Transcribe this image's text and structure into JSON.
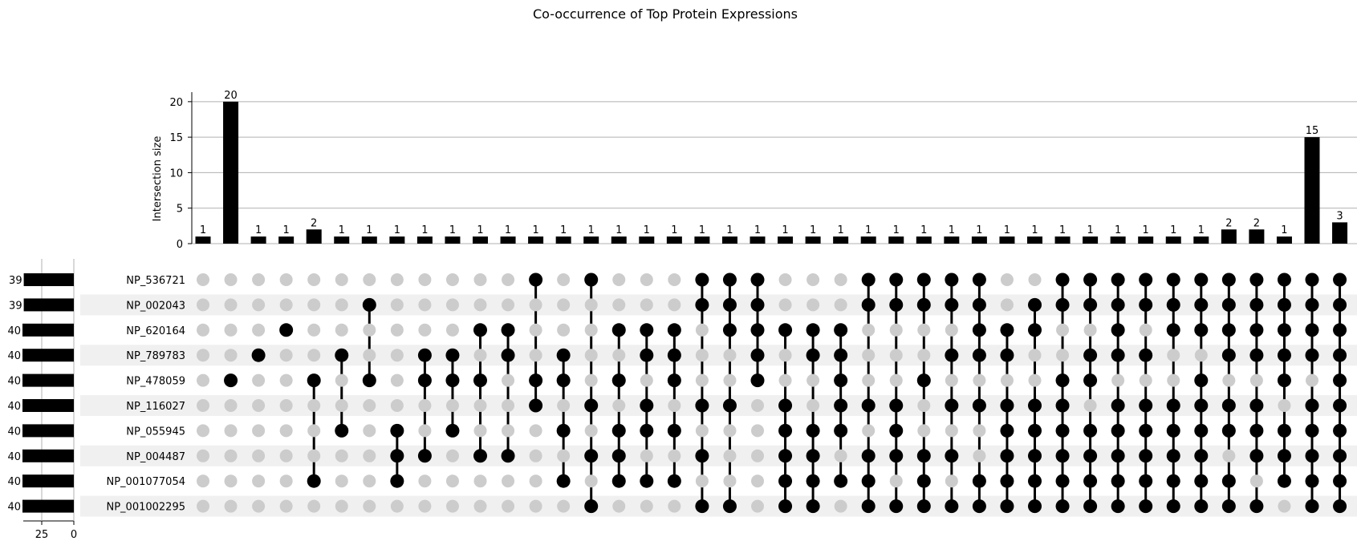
{
  "chart_data": {
    "type": "upset",
    "title": "Co-occurrence of Top Protein Expressions",
    "ylabel": "Intersection size",
    "ylim": [
      0,
      21
    ],
    "yticks": [
      0,
      5,
      10,
      15,
      20
    ],
    "set_size_ticks": [
      25,
      0
    ],
    "sets": [
      {
        "name": "NP_536721",
        "size": 39
      },
      {
        "name": "NP_002043",
        "size": 39
      },
      {
        "name": "NP_620164",
        "size": 40
      },
      {
        "name": "NP_789783",
        "size": 40
      },
      {
        "name": "NP_478059",
        "size": 40
      },
      {
        "name": "NP_116027",
        "size": 40
      },
      {
        "name": "NP_055945",
        "size": 40
      },
      {
        "name": "NP_004487",
        "size": 40
      },
      {
        "name": "NP_001077054",
        "size": 40
      },
      {
        "name": "NP_001002295",
        "size": 40
      }
    ],
    "intersections": [
      {
        "size": 1,
        "members": []
      },
      {
        "size": 20,
        "members": [
          4
        ]
      },
      {
        "size": 1,
        "members": [
          3
        ]
      },
      {
        "size": 1,
        "members": [
          2
        ]
      },
      {
        "size": 2,
        "members": [
          4,
          8
        ]
      },
      {
        "size": 1,
        "members": [
          3,
          6
        ]
      },
      {
        "size": 1,
        "members": [
          1,
          4
        ]
      },
      {
        "size": 1,
        "members": [
          6,
          7,
          8
        ]
      },
      {
        "size": 1,
        "members": [
          3,
          4,
          7
        ]
      },
      {
        "size": 1,
        "members": [
          3,
          4,
          6
        ]
      },
      {
        "size": 1,
        "members": [
          2,
          4,
          7
        ]
      },
      {
        "size": 1,
        "members": [
          2,
          3,
          7
        ]
      },
      {
        "size": 1,
        "members": [
          0,
          4,
          5
        ]
      },
      {
        "size": 1,
        "members": [
          3,
          4,
          6,
          8
        ]
      },
      {
        "size": 1,
        "members": [
          0,
          5,
          7,
          9
        ]
      },
      {
        "size": 1,
        "members": [
          2,
          4,
          6,
          7,
          8
        ]
      },
      {
        "size": 1,
        "members": [
          2,
          3,
          5,
          6,
          8
        ]
      },
      {
        "size": 1,
        "members": [
          2,
          3,
          4,
          6,
          8
        ]
      },
      {
        "size": 1,
        "members": [
          0,
          1,
          5,
          7,
          9
        ]
      },
      {
        "size": 1,
        "members": [
          0,
          1,
          2,
          5,
          9
        ]
      },
      {
        "size": 1,
        "members": [
          0,
          1,
          2,
          3,
          4
        ]
      },
      {
        "size": 1,
        "members": [
          2,
          5,
          6,
          7,
          8,
          9
        ]
      },
      {
        "size": 1,
        "members": [
          2,
          3,
          6,
          7,
          8,
          9
        ]
      },
      {
        "size": 1,
        "members": [
          2,
          3,
          4,
          5,
          6,
          8
        ]
      },
      {
        "size": 1,
        "members": [
          0,
          1,
          5,
          7,
          8,
          9
        ]
      },
      {
        "size": 1,
        "members": [
          0,
          1,
          5,
          6,
          7,
          9
        ]
      },
      {
        "size": 1,
        "members": [
          0,
          1,
          4,
          7,
          8,
          9
        ]
      },
      {
        "size": 1,
        "members": [
          0,
          1,
          3,
          5,
          7,
          9
        ]
      },
      {
        "size": 1,
        "members": [
          0,
          1,
          2,
          3,
          5,
          8,
          9
        ]
      },
      {
        "size": 1,
        "members": [
          2,
          3,
          5,
          6,
          7,
          8,
          9
        ]
      },
      {
        "size": 1,
        "members": [
          1,
          2,
          5,
          6,
          7,
          8,
          9
        ]
      },
      {
        "size": 1,
        "members": [
          0,
          1,
          4,
          5,
          6,
          7,
          8,
          9
        ]
      },
      {
        "size": 1,
        "members": [
          0,
          1,
          3,
          4,
          6,
          7,
          8,
          9
        ]
      },
      {
        "size": 1,
        "members": [
          0,
          1,
          2,
          3,
          5,
          6,
          7,
          8,
          9
        ]
      },
      {
        "size": 1,
        "members": [
          0,
          1,
          3,
          5,
          6,
          7,
          8,
          9
        ]
      },
      {
        "size": 1,
        "members": [
          0,
          1,
          2,
          5,
          6,
          7,
          8,
          9
        ]
      },
      {
        "size": 1,
        "members": [
          0,
          1,
          2,
          4,
          5,
          6,
          7,
          8,
          9
        ]
      },
      {
        "size": 2,
        "members": [
          0,
          1,
          2,
          3,
          5,
          6,
          8,
          9
        ]
      },
      {
        "size": 2,
        "members": [
          0,
          1,
          2,
          3,
          5,
          6,
          7,
          9
        ]
      },
      {
        "size": 1,
        "members": [
          0,
          1,
          2,
          3,
          4,
          6,
          7,
          8
        ]
      },
      {
        "size": 15,
        "members": [
          0,
          1,
          2,
          3,
          5,
          6,
          7,
          8,
          9
        ]
      },
      {
        "size": 3,
        "members": [
          0,
          1,
          2,
          3,
          4,
          5,
          6,
          7,
          8,
          9
        ]
      }
    ],
    "grid": "horizontal",
    "legend": "none"
  }
}
